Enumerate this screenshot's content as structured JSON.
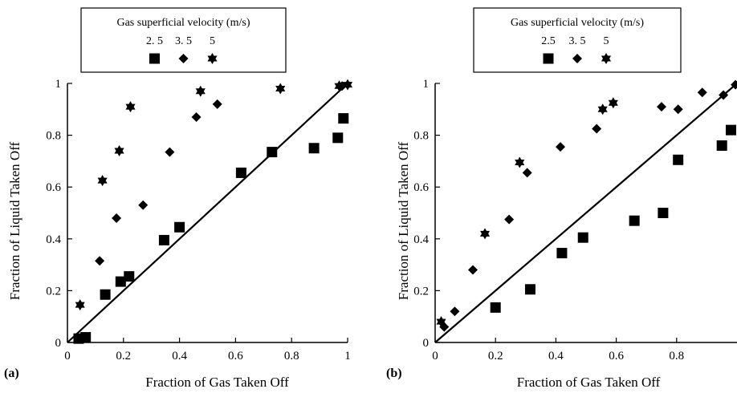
{
  "chart_data": [
    {
      "type": "scatter",
      "panel_label": "(a)",
      "xlabel": "Fraction of Gas Taken Off",
      "ylabel": "Fraction of Liquid Taken Off",
      "xlim": [
        0,
        1
      ],
      "ylim": [
        0,
        1
      ],
      "xticks": [
        0,
        0.2,
        0.4,
        0.6,
        0.8,
        1
      ],
      "yticks": [
        0,
        0.2,
        0.4,
        0.6,
        0.8,
        1
      ],
      "xtick_labels": [
        "0",
        "0.2",
        "0.4",
        "0.6",
        "0.8",
        "1"
      ],
      "ytick_labels": [
        "0",
        "0.2",
        "0.4",
        "0.6",
        "0.8",
        "1"
      ],
      "grid": false,
      "reference_line": {
        "from": [
          0,
          0
        ],
        "to": [
          1,
          1
        ]
      },
      "legend": {
        "title": "Gas superficial velocity (m/s)",
        "placement": "top-center",
        "labels": [
          "2. 5",
          "3. 5",
          "5"
        ]
      },
      "series": [
        {
          "name": "2.5",
          "marker": "square",
          "x": [
            0.04,
            0.065,
            0.135,
            0.19,
            0.22,
            0.345,
            0.4,
            0.62,
            0.73,
            0.88,
            0.965,
            0.985
          ],
          "y": [
            0.015,
            0.02,
            0.185,
            0.235,
            0.255,
            0.395,
            0.445,
            0.655,
            0.735,
            0.75,
            0.79,
            0.865
          ]
        },
        {
          "name": "3.5",
          "marker": "diamond",
          "x": [
            0.115,
            0.175,
            0.27,
            0.365,
            0.46,
            0.535,
            0.98
          ],
          "y": [
            0.315,
            0.48,
            0.53,
            0.735,
            0.87,
            0.92,
            0.99
          ]
        },
        {
          "name": "5",
          "marker": "star",
          "x": [
            0.045,
            0.125,
            0.185,
            0.225,
            0.475,
            0.76,
            0.97,
            1.0
          ],
          "y": [
            0.145,
            0.625,
            0.74,
            0.91,
            0.97,
            0.98,
            0.99,
            0.995
          ]
        }
      ]
    },
    {
      "type": "scatter",
      "panel_label": "(b)",
      "xlabel": "Fraction of Gas Taken Off",
      "ylabel": "Fraction of Liquid Taken Off",
      "xlim": [
        0,
        1
      ],
      "ylim": [
        0,
        1
      ],
      "xticks": [
        0,
        0.2,
        0.4,
        0.6,
        0.8
      ],
      "yticks": [
        0,
        0.2,
        0.4,
        0.6,
        0.8,
        1
      ],
      "xtick_labels": [
        "0",
        "0.2",
        "0.4",
        "0.6",
        "0.8"
      ],
      "ytick_labels": [
        "0",
        "0.2",
        "0.4",
        "0.6",
        "0.8",
        "1"
      ],
      "grid": false,
      "reference_line": {
        "from": [
          0,
          0
        ],
        "to": [
          1,
          1
        ]
      },
      "legend": {
        "title": "Gas superficial velocity (m/s)",
        "placement": "top-center",
        "labels": [
          "2.5",
          "3. 5",
          "5"
        ]
      },
      "series": [
        {
          "name": "2.5",
          "marker": "square",
          "x": [
            0.2,
            0.315,
            0.42,
            0.49,
            0.66,
            0.755,
            0.805,
            0.95,
            0.98
          ],
          "y": [
            0.135,
            0.205,
            0.345,
            0.405,
            0.47,
            0.5,
            0.705,
            0.76,
            0.82
          ]
        },
        {
          "name": "3.5",
          "marker": "diamond",
          "x": [
            0.03,
            0.065,
            0.125,
            0.245,
            0.305,
            0.415,
            0.535,
            0.75,
            0.805,
            0.885,
            0.955,
            0.995
          ],
          "y": [
            0.06,
            0.12,
            0.28,
            0.475,
            0.655,
            0.755,
            0.825,
            0.91,
            0.9,
            0.965,
            0.955,
            0.995
          ]
        },
        {
          "name": "5",
          "marker": "star",
          "x": [
            0.02,
            0.165,
            0.28,
            0.555,
            0.59
          ],
          "y": [
            0.08,
            0.42,
            0.695,
            0.9,
            0.925
          ]
        }
      ]
    }
  ]
}
